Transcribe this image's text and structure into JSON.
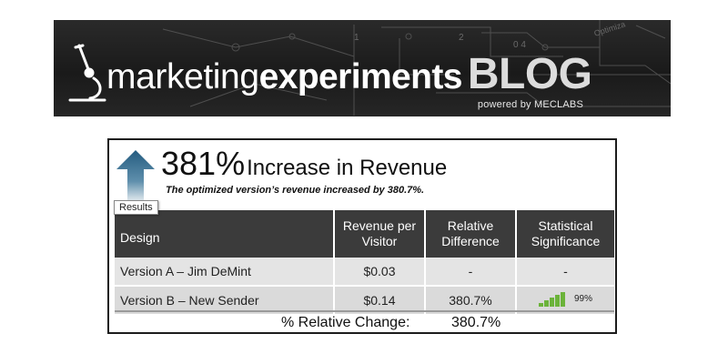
{
  "banner": {
    "brand_light": "marketing",
    "brand_bold": "experiments",
    "brand_blog": "BLOG",
    "powered_by": "powered by MECLABS",
    "deco_text": [
      "0 4",
      "Optimiza",
      "1",
      "2"
    ]
  },
  "result": {
    "headline_big": "381%",
    "headline_rest": "Increase in Revenue",
    "subtitle": "The optimized version’s revenue increased by 380.7%.",
    "tag_label": "Results",
    "table": {
      "headers": {
        "design": "Design",
        "revenue": [
          "Revenue per",
          "Visitor"
        ],
        "relative": [
          "Relative",
          "Difference"
        ],
        "significance": [
          "Statistical",
          "Significance"
        ]
      },
      "rows": [
        {
          "design": "Version A – Jim DeMint",
          "revenue": "$0.03",
          "relative": "-",
          "significance": "-"
        },
        {
          "design": "Version B – New Sender",
          "revenue": "$0.14",
          "relative": "380.7%",
          "significance": "99%",
          "confidence_level": 0.99
        }
      ]
    },
    "footer_label": "% Relative Change:",
    "footer_value": "380.7%"
  },
  "colors": {
    "banner_bg": "#1e1e1e",
    "header_bg": "#3b3b3b",
    "row_bg": "#e4e4e4",
    "arrow_blue": "#2f6a8c",
    "bars_green": "#6bb33a"
  }
}
